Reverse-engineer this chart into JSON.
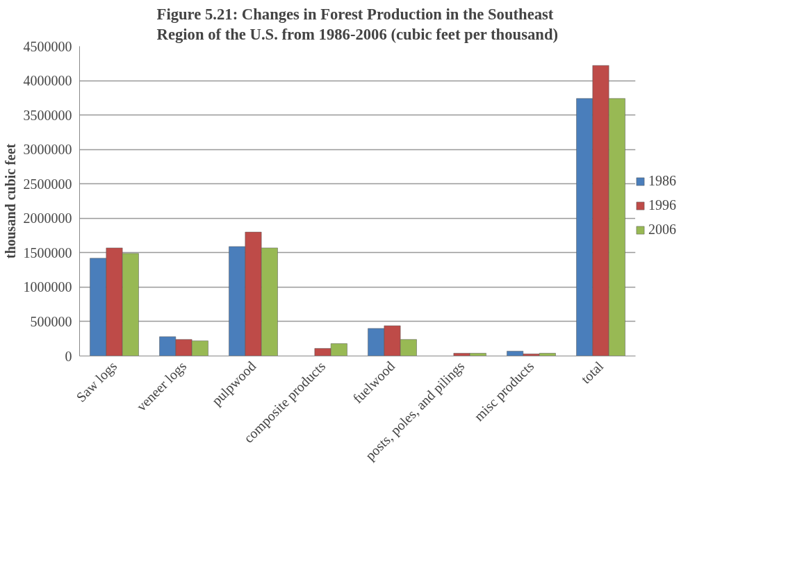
{
  "chart_data": {
    "type": "bar",
    "title": "Figure 5.21: Changes in Forest Production in the Southeast Region of the U.S. from 1986-2006 (cubic feet per thousand)",
    "ylabel": "thousand cubic feet",
    "categories": [
      "Saw logs",
      "veneer logs",
      "pulpwood",
      "composite products",
      "fuelwood",
      "posts, poles, and pilings",
      "misc products",
      "total"
    ],
    "series": [
      {
        "name": "1986",
        "color": "#4a7ebb",
        "values": [
          1420000,
          280000,
          1590000,
          null,
          400000,
          null,
          70000,
          3740000
        ]
      },
      {
        "name": "1996",
        "color": "#be4b48",
        "values": [
          1570000,
          240000,
          1800000,
          110000,
          440000,
          40000,
          30000,
          4220000
        ]
      },
      {
        "name": "2006",
        "color": "#98b954",
        "values": [
          1490000,
          220000,
          1570000,
          180000,
          240000,
          40000,
          40000,
          3740000
        ]
      }
    ],
    "ylim": [
      0,
      4500000
    ],
    "yticks": [
      0,
      500000,
      1000000,
      1500000,
      2000000,
      2500000,
      3000000,
      3500000,
      4000000,
      4500000
    ],
    "grid": "y",
    "legend": "right"
  }
}
